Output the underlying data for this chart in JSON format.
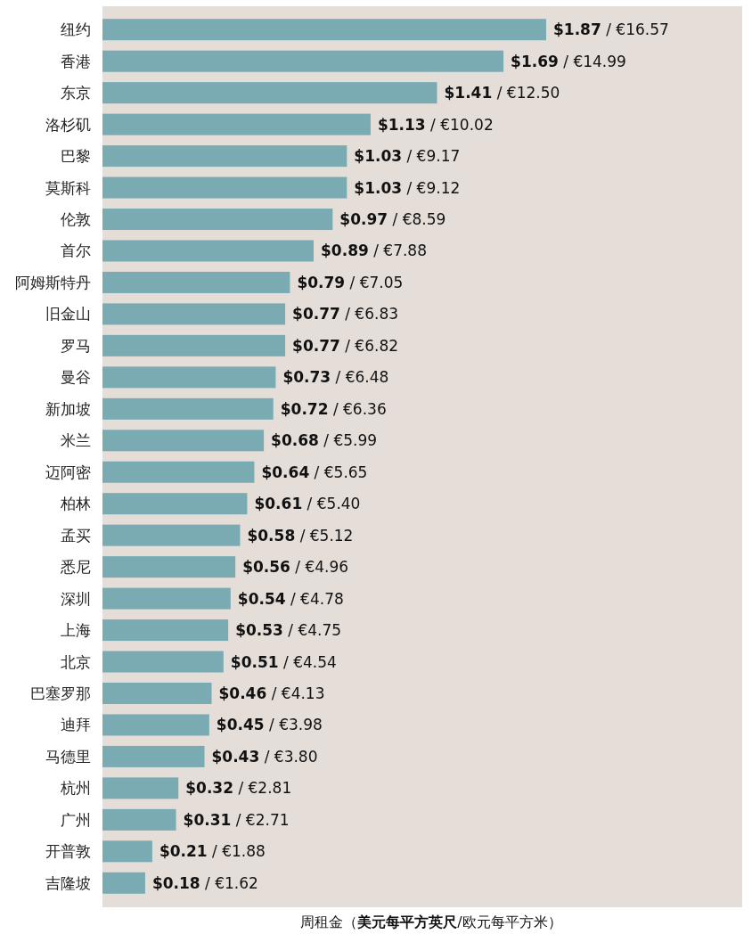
{
  "chart_data": {
    "type": "bar",
    "orientation": "horizontal",
    "xlabel": "周租金（**美元每平方英尺**/欧元每平方米）",
    "color": "#7aabb3",
    "tick_labels": "y",
    "categories": [
      "纽约",
      "香港",
      "东京",
      "洛杉矶",
      "巴黎",
      "莫斯科",
      "伦敦",
      "首尔",
      "阿姆斯特丹",
      "旧金山",
      "罗马",
      "曼谷",
      "新加坡",
      "米兰",
      "迈阿密",
      "柏林",
      "孟买",
      "悉尼",
      "深圳",
      "上海",
      "北京",
      "巴塞罗那",
      "迪拜",
      "马德里",
      "杭州",
      "广州",
      "开普敦",
      "吉隆坡"
    ],
    "values": [
      1.87,
      1.69,
      1.41,
      1.13,
      1.03,
      1.03,
      0.97,
      0.89,
      0.79,
      0.77,
      0.77,
      0.73,
      0.72,
      0.68,
      0.64,
      0.61,
      0.58,
      0.56,
      0.54,
      0.53,
      0.51,
      0.46,
      0.45,
      0.43,
      0.32,
      0.31,
      0.21,
      0.18
    ],
    "value_labels": [
      "**$1.87** / €16.57",
      "**$1.69** / €14.99",
      "**$1.41** / €12.50",
      "**$1.13** / €10.02",
      "**$1.03** / €9.17",
      "**$1.03** / €9.12",
      "**$0.97** / €8.59",
      "**$0.89** / €7.88",
      "**$0.79** / €7.05",
      "**$0.77** / €6.83",
      "**$0.77** / €6.82",
      "**$0.73** / €6.48",
      "**$0.72** / €6.36",
      "**$0.68** / €5.99",
      "**$0.64** / €5.65",
      "**$0.61** / €5.40",
      "**$0.58** / €5.12",
      "**$0.56** / €4.96",
      "**$0.54** / €4.78",
      "**$0.53** / €4.75",
      "**$0.51** / €4.54",
      "**$0.46** / €4.13",
      "**$0.45** / €3.98",
      "**$0.43** / €3.80",
      "**$0.32** / €2.81",
      "**$0.31** / €2.71",
      "**$0.21** / €1.88",
      "**$0.18** / €1.62"
    ]
  }
}
